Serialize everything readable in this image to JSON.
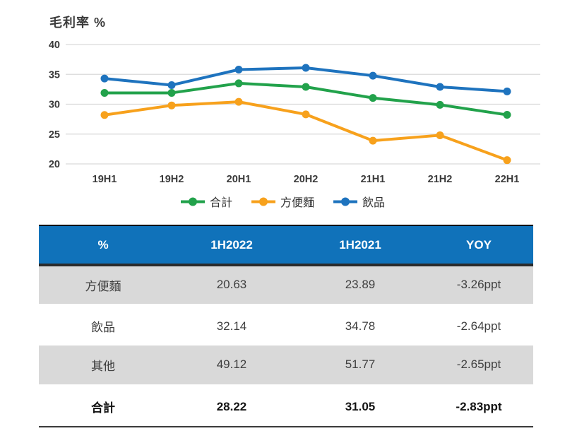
{
  "title": "毛利率 %",
  "chart_data": {
    "type": "line",
    "x": [
      "19H1",
      "19H2",
      "20H1",
      "20H2",
      "21H1",
      "21H2",
      "22H1"
    ],
    "series": [
      {
        "name": "合計",
        "color": "#22A24B",
        "values": [
          31.9,
          31.9,
          33.5,
          32.9,
          31.05,
          29.9,
          28.22
        ]
      },
      {
        "name": "方便麵",
        "color": "#F7A11C",
        "values": [
          28.2,
          29.8,
          30.4,
          28.3,
          23.89,
          24.8,
          20.63
        ]
      },
      {
        "name": "飲品",
        "color": "#1E73BE",
        "values": [
          34.3,
          33.2,
          35.8,
          36.1,
          34.78,
          32.9,
          32.14
        ]
      }
    ],
    "title": "毛利率 %",
    "xlabel": "",
    "ylabel": "毛利率 %",
    "ylim": [
      20,
      40
    ],
    "yticks": [
      40,
      35,
      30,
      25,
      20
    ],
    "grid": true,
    "legend_position": "bottom"
  },
  "table": {
    "columns": [
      "%",
      "1H2022",
      "1H2021",
      "YOY"
    ],
    "rows": [
      {
        "label": "方便麵",
        "h1_2022": "20.63",
        "h1_2021": "23.89",
        "yoy": "-3.26ppt"
      },
      {
        "label": "飲品",
        "h1_2022": "32.14",
        "h1_2021": "34.78",
        "yoy": "-2.64ppt"
      },
      {
        "label": "其他",
        "h1_2022": "49.12",
        "h1_2021": "51.77",
        "yoy": "-2.65ppt"
      },
      {
        "label": "合計",
        "h1_2022": "28.22",
        "h1_2021": "31.05",
        "yoy": "-2.83ppt"
      }
    ]
  },
  "colors": {
    "header_bg": "#1072BA",
    "row_alt_bg": "#D9D9D9",
    "gridline": "#D9D9D9",
    "axis_text": "#3a3a3a"
  }
}
